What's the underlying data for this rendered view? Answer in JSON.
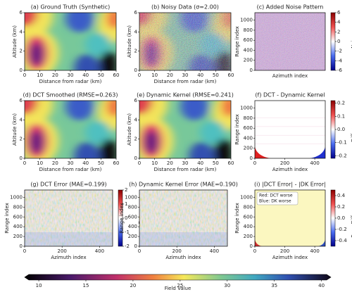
{
  "chart_data": [
    {
      "type": "heatmap",
      "title": "(a) Ground Truth (Synthetic)",
      "xlabel": "Distance from radar (km)",
      "ylabel": "Altitude (km)",
      "xlim": [
        0,
        60
      ],
      "ylim": [
        0,
        6
      ],
      "xticks": [
        0,
        10,
        20,
        30,
        40,
        50,
        60
      ],
      "yticks": [
        0,
        2,
        4,
        6
      ],
      "colormap": "nipy_spectral"
    },
    {
      "type": "heatmap",
      "title": "(b) Noisy Data (σ=2.00)",
      "xlabel": "Distance from radar (km)",
      "ylabel": "Altitude (km)",
      "xlim": [
        0,
        60
      ],
      "ylim": [
        0,
        6
      ],
      "xticks": [
        0,
        10,
        20,
        30,
        40,
        50,
        60
      ],
      "yticks": [
        0,
        2,
        4,
        6
      ],
      "colormap": "nipy_spectral"
    },
    {
      "type": "heatmap",
      "title": "(c) Added Noise Pattern",
      "xlabel": "Azimuth index",
      "ylabel": "Range index",
      "xlim": [
        0,
        470
      ],
      "ylim": [
        0,
        1150
      ],
      "yticks": [
        0,
        200,
        400,
        600,
        800,
        1000
      ],
      "colormap": "seismic",
      "colorbar": {
        "label": "Noise",
        "lim": [
          -6,
          6
        ],
        "ticks": [
          -6,
          -4,
          -2,
          0,
          2,
          4,
          6
        ]
      }
    },
    {
      "type": "heatmap",
      "title": "(d) DCT Smoothed (RMSE=0.263)",
      "xlabel": "Distance from radar (km)",
      "ylabel": "Altitude (km)",
      "xlim": [
        0,
        60
      ],
      "ylim": [
        0,
        6
      ],
      "xticks": [
        0,
        10,
        20,
        30,
        40,
        50,
        60
      ],
      "yticks": [
        0,
        2,
        4,
        6
      ],
      "colormap": "nipy_spectral"
    },
    {
      "type": "heatmap",
      "title": "(e) Dynamic Kernel (RMSE=0.241)",
      "xlabel": "Distance from radar (km)",
      "ylabel": "Altitude (km)",
      "xlim": [
        0,
        60
      ],
      "ylim": [
        0,
        6
      ],
      "xticks": [
        0,
        10,
        20,
        30,
        40,
        50,
        60
      ],
      "yticks": [
        0,
        2,
        4,
        6
      ],
      "colormap": "nipy_spectral"
    },
    {
      "type": "heatmap",
      "title": "(f) DCT - Dynamic Kernel",
      "xlabel": "Azimuth index",
      "ylabel": "Range index",
      "xlim": [
        0,
        470
      ],
      "ylim": [
        0,
        1150
      ],
      "xticks": [
        0,
        200,
        400
      ],
      "yticks": [
        0,
        200,
        400,
        600,
        800,
        1000
      ],
      "colormap": "seismic",
      "colorbar": {
        "label": "Difference",
        "lim": [
          -0.22,
          0.22
        ],
        "ticks": [
          -0.2,
          -0.1,
          {
            "value": 0,
            "label": "0.0"
          },
          0.1,
          0.2
        ]
      }
    },
    {
      "type": "heatmap",
      "title": "(g) DCT Error (MAE=0.199)",
      "xlabel": "Azimuth index",
      "ylabel": "Range index",
      "xlim": [
        0,
        470
      ],
      "ylim": [
        0,
        1150
      ],
      "xticks": [
        0,
        200,
        400
      ],
      "yticks": [
        0,
        200,
        400,
        600,
        800,
        1000
      ],
      "colormap": "seismic",
      "colorbar": {
        "label": "Error",
        "lim": [
          -2,
          2
        ],
        "ticks": [
          -2,
          -1,
          0,
          1,
          2
        ]
      }
    },
    {
      "type": "heatmap",
      "title": "(h) Dynamic Kernel Error (MAE=0.190)",
      "xlabel": "Azimuth index",
      "ylabel": "Range index",
      "xlim": [
        0,
        470
      ],
      "ylim": [
        0,
        1150
      ],
      "xticks": [
        0,
        200,
        400
      ],
      "yticks": [
        0,
        200,
        400,
        600,
        800,
        1000
      ],
      "colormap": "seismic"
    },
    {
      "type": "heatmap",
      "title": "(i) |DCT Error| - |DK Error|",
      "xlabel": "Azimuth index",
      "ylabel": "Range index",
      "xlim": [
        0,
        470
      ],
      "ylim": [
        0,
        1150
      ],
      "xticks": [
        0,
        200,
        400
      ],
      "yticks": [
        0,
        200,
        400,
        600,
        800,
        1000
      ],
      "colormap": "seismic",
      "annotation": [
        "Red: DCT worse",
        "Blue: DK worse"
      ],
      "colorbar": {
        "label": "Error Difference",
        "lim": [
          -0.5,
          0.5
        ],
        "ticks": [
          -0.4,
          -0.2,
          {
            "value": 0,
            "label": "0.0"
          },
          0.2,
          0.4
        ]
      }
    },
    {
      "type": "colorbar",
      "label": "Field Value",
      "lim": [
        8.5,
        41
      ],
      "ticks": [
        10,
        15,
        20,
        25,
        30,
        35,
        40
      ],
      "colormap": "nipy_spectral"
    }
  ]
}
